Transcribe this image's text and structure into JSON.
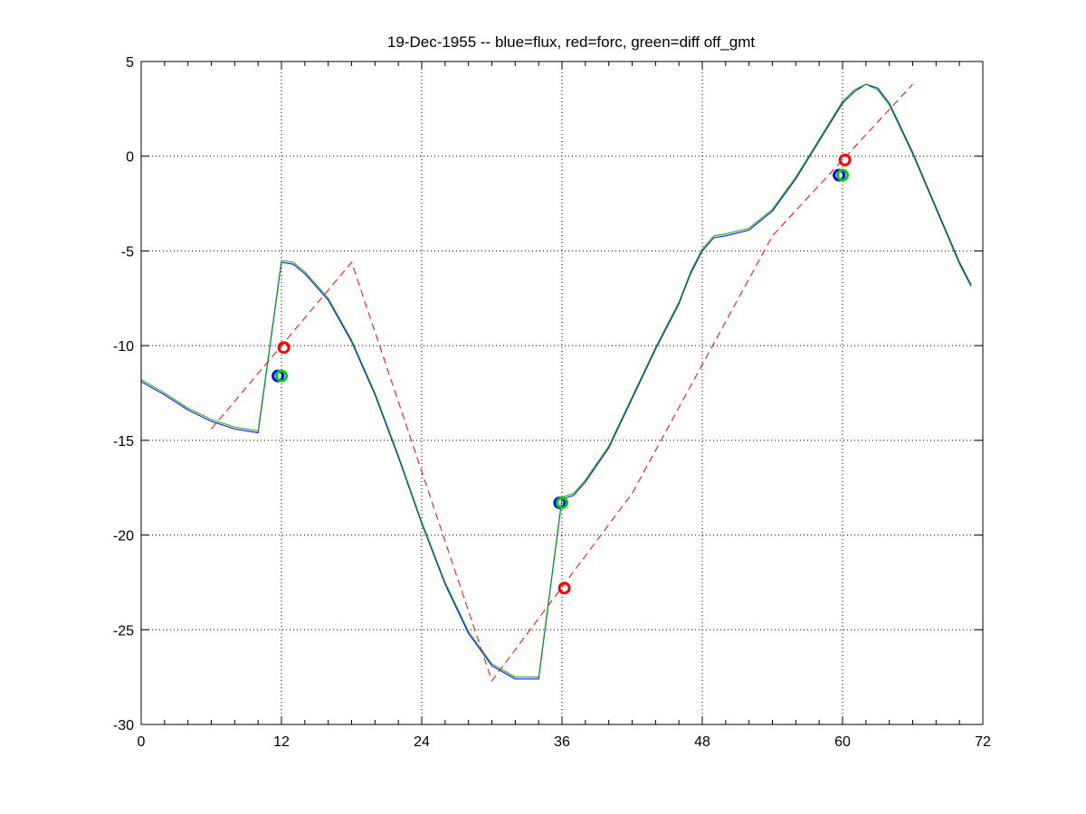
{
  "chart_data": {
    "type": "line",
    "title": "19-Dec-1955 -- blue=flux, red=forc, green=diff off_gmt",
    "xlabel": "",
    "ylabel": "",
    "xlim": [
      0,
      72
    ],
    "ylim": [
      -30,
      5
    ],
    "xticks": [
      0,
      12,
      24,
      36,
      48,
      60,
      72
    ],
    "yticks": [
      5,
      0,
      -5,
      -10,
      -15,
      -20,
      -25,
      -30
    ],
    "grid": true,
    "colors": {
      "flux": "#0000ff",
      "forc": "#ff0000",
      "diff": "#00aa00",
      "axis": "#000000"
    },
    "series": [
      {
        "name": "flux",
        "style": "solid",
        "color": "#0000ff",
        "points": [
          [
            0,
            -11.9
          ],
          [
            2,
            -12.6
          ],
          [
            4,
            -13.4
          ],
          [
            6,
            -14.0
          ],
          [
            8,
            -14.4
          ],
          [
            10,
            -14.6
          ],
          [
            12,
            -5.6
          ],
          [
            13,
            -5.7
          ],
          [
            14,
            -6.2
          ],
          [
            16,
            -7.6
          ],
          [
            18,
            -9.8
          ],
          [
            20,
            -12.6
          ],
          [
            22,
            -15.9
          ],
          [
            24,
            -19.4
          ],
          [
            26,
            -22.6
          ],
          [
            28,
            -25.2
          ],
          [
            30,
            -26.9
          ],
          [
            32,
            -27.6
          ],
          [
            34,
            -27.6
          ],
          [
            36,
            -18.1
          ],
          [
            37,
            -17.9
          ],
          [
            38,
            -17.2
          ],
          [
            40,
            -15.4
          ],
          [
            42,
            -12.8
          ],
          [
            44,
            -10.2
          ],
          [
            46,
            -7.8
          ],
          [
            47,
            -6.2
          ],
          [
            48,
            -5.0
          ],
          [
            49,
            -4.3
          ],
          [
            50,
            -4.2
          ],
          [
            52,
            -3.9
          ],
          [
            54,
            -2.9
          ],
          [
            56,
            -1.2
          ],
          [
            58,
            0.8
          ],
          [
            60,
            2.8
          ],
          [
            61,
            3.4
          ],
          [
            62,
            3.8
          ],
          [
            63,
            3.6
          ],
          [
            64,
            2.8
          ],
          [
            66,
            0.2
          ],
          [
            68,
            -2.7
          ],
          [
            70,
            -5.6
          ],
          [
            71,
            -6.8
          ]
        ]
      },
      {
        "name": "diff",
        "style": "solid",
        "color": "#00aa00",
        "points": [
          [
            0,
            -11.8
          ],
          [
            2,
            -12.5
          ],
          [
            4,
            -13.3
          ],
          [
            6,
            -13.9
          ],
          [
            8,
            -14.3
          ],
          [
            10,
            -14.5
          ],
          [
            12,
            -5.5
          ],
          [
            13,
            -5.6
          ],
          [
            14,
            -6.1
          ],
          [
            16,
            -7.5
          ],
          [
            18,
            -9.7
          ],
          [
            20,
            -12.5
          ],
          [
            22,
            -15.8
          ],
          [
            24,
            -19.3
          ],
          [
            26,
            -22.5
          ],
          [
            28,
            -25.1
          ],
          [
            30,
            -26.8
          ],
          [
            32,
            -27.5
          ],
          [
            34,
            -27.5
          ],
          [
            36,
            -18.0
          ],
          [
            37,
            -17.8
          ],
          [
            38,
            -17.1
          ],
          [
            40,
            -15.3
          ],
          [
            42,
            -12.7
          ],
          [
            44,
            -10.1
          ],
          [
            46,
            -7.7
          ],
          [
            47,
            -6.1
          ],
          [
            48,
            -4.9
          ],
          [
            49,
            -4.2
          ],
          [
            50,
            -4.1
          ],
          [
            52,
            -3.8
          ],
          [
            54,
            -2.8
          ],
          [
            56,
            -1.1
          ],
          [
            58,
            0.9
          ],
          [
            60,
            2.9
          ],
          [
            61,
            3.5
          ],
          [
            62,
            3.8
          ],
          [
            63,
            3.5
          ],
          [
            64,
            2.7
          ],
          [
            66,
            0.1
          ],
          [
            68,
            -2.8
          ],
          [
            70,
            -5.7
          ],
          [
            71,
            -6.9
          ]
        ]
      },
      {
        "name": "forc",
        "style": "dashed",
        "color": "#ff0000",
        "points": [
          [
            6,
            -14.4
          ],
          [
            18,
            -5.6
          ],
          [
            30,
            -27.7
          ],
          [
            42,
            -17.8
          ],
          [
            54,
            -4.2
          ],
          [
            66,
            3.8
          ]
        ]
      }
    ],
    "markers": [
      {
        "series": "forc",
        "color": "#ff0000",
        "x": 12.2,
        "y": -10.1
      },
      {
        "series": "flux",
        "color": "#0000ff",
        "x": 11.7,
        "y": -11.6
      },
      {
        "series": "diff",
        "color": "#00cc00",
        "x": 12.0,
        "y": -11.6
      },
      {
        "series": "forc",
        "color": "#ff0000",
        "x": 36.2,
        "y": -22.8
      },
      {
        "series": "flux",
        "color": "#0000ff",
        "x": 35.8,
        "y": -18.3
      },
      {
        "series": "diff",
        "color": "#00cc00",
        "x": 36.0,
        "y": -18.3
      },
      {
        "series": "forc",
        "color": "#ff0000",
        "x": 60.2,
        "y": -0.2
      },
      {
        "series": "flux",
        "color": "#0000ff",
        "x": 59.7,
        "y": -1.0
      },
      {
        "series": "diff",
        "color": "#00cc00",
        "x": 60.0,
        "y": -1.0
      }
    ]
  }
}
